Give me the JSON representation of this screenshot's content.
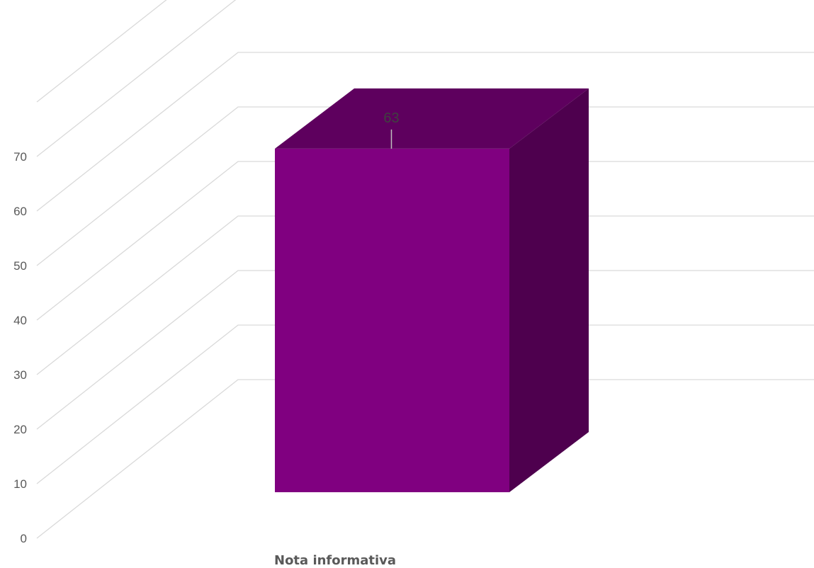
{
  "chart_data": {
    "type": "bar",
    "style": "3d-column",
    "categories": [
      "Nota informativa"
    ],
    "values": [
      63
    ],
    "data_labels": [
      "63"
    ],
    "ylim": [
      0,
      70
    ],
    "y_ticks": [
      "0",
      "10",
      "20",
      "30",
      "40",
      "50",
      "60",
      "70"
    ],
    "grid": true,
    "legend": "none",
    "colors": {
      "bar_front": "#800080",
      "bar_top": "#5e005e",
      "bar_side": "#4e004e",
      "gridline": "#d9d9d9",
      "tick_text": "#595959",
      "label_text": "#404040"
    }
  }
}
